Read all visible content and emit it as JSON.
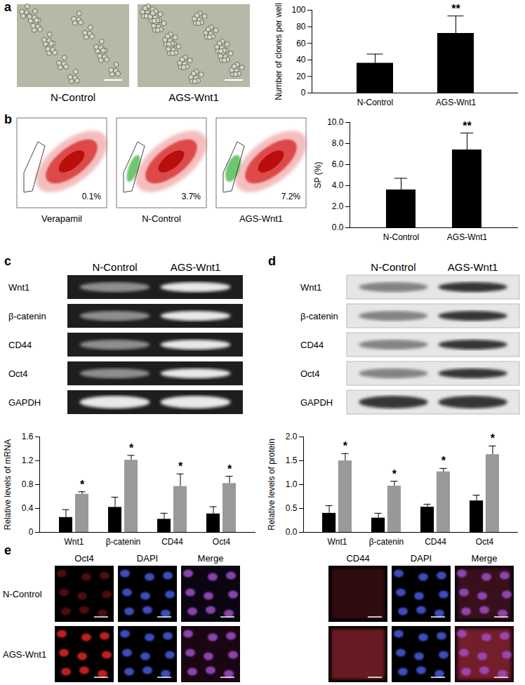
{
  "panels": {
    "labels": [
      "a",
      "b",
      "c",
      "d",
      "e"
    ],
    "a": {
      "images": [
        "N-Control",
        "AGS-Wnt1"
      ]
    },
    "b": {
      "plots": [
        {
          "label": "Verapamil",
          "gate_percent": 0.1,
          "value_label": "0.1%"
        },
        {
          "label": "N-Control",
          "gate_percent": 3.7,
          "value_label": "3.7%"
        },
        {
          "label": "AGS-Wnt1",
          "gate_percent": 7.2,
          "value_label": "7.2%"
        }
      ]
    },
    "c": {
      "columns": [
        "N-Control",
        "AGS-Wnt1"
      ],
      "rows": [
        "Wnt1",
        "β-catenin",
        "CD44",
        "Oct4",
        "GAPDH"
      ]
    },
    "d": {
      "columns": [
        "N-Control",
        "AGS-Wnt1"
      ],
      "rows": [
        "Wnt1",
        "β-catenin",
        "CD44",
        "Oct4",
        "GAPDH"
      ]
    },
    "e": {
      "rows": [
        "N-Control",
        "AGS-Wnt1"
      ],
      "groups": [
        [
          "Oct4",
          "DAPI",
          "Merge"
        ],
        [
          "CD44",
          "DAPI",
          "Merge"
        ]
      ]
    }
  },
  "chart_data": [
    {
      "type": "bar",
      "categories": [
        "N-Control",
        "AGS-Wnt1"
      ],
      "values": [
        36,
        72
      ],
      "errors": [
        11,
        21
      ],
      "color": "#000000",
      "y_label": "Number of clones per well",
      "ylim": [
        0,
        100
      ],
      "yticks": [
        0,
        20,
        40,
        60,
        80,
        100
      ],
      "annotations": [
        {
          "category": "AGS-Wnt1",
          "series": 0,
          "text": "**"
        }
      ]
    },
    {
      "type": "bar",
      "categories": [
        "N-Control",
        "AGS-Wnt1"
      ],
      "values": [
        3.6,
        7.4
      ],
      "errors": [
        1.1,
        1.6
      ],
      "color": "#000000",
      "y_label": "SP (%)",
      "ylim": [
        0,
        10
      ],
      "yticks": [
        {
          "value": 0,
          "label": "0.0"
        },
        {
          "value": 2,
          "label": "2.0"
        },
        {
          "value": 4,
          "label": "4.0"
        },
        {
          "value": 6,
          "label": "6.0"
        },
        {
          "value": 8,
          "label": "8.0"
        },
        {
          "value": 10,
          "label": "10.0"
        }
      ],
      "annotations": [
        {
          "category": "AGS-Wnt1",
          "series": 0,
          "text": "**"
        }
      ]
    },
    {
      "type": "bar",
      "categories": [
        "Wnt1",
        "β-catenin",
        "CD44",
        "Oct4"
      ],
      "series": [
        {
          "color": "#000000",
          "values": [
            0.25,
            0.42,
            0.22,
            0.31
          ],
          "errors": [
            0.13,
            0.17,
            0.1,
            0.12
          ]
        },
        {
          "color": "#999999",
          "values": [
            0.64,
            1.21,
            0.77,
            0.82
          ],
          "errors": [
            0.04,
            0.08,
            0.21,
            0.12
          ]
        }
      ],
      "y_label": "Relative levels of mRNA",
      "ylim": [
        0,
        1.6
      ],
      "yticks": [
        0,
        0.4,
        0.8,
        1.2,
        1.6
      ],
      "annotations": [
        {
          "category": "Wnt1",
          "series": 1,
          "text": "*"
        },
        {
          "category": "β-catenin",
          "series": 1,
          "text": "*"
        },
        {
          "category": "CD44",
          "series": 1,
          "text": "*"
        },
        {
          "category": "Oct4",
          "series": 1,
          "text": "*"
        }
      ]
    },
    {
      "type": "bar",
      "categories": [
        "Wnt1",
        "β-catenin",
        "CD44",
        "Oct4"
      ],
      "series": [
        {
          "color": "#000000",
          "values": [
            0.4,
            0.3,
            0.53,
            0.66
          ],
          "errors": [
            0.16,
            0.1,
            0.06,
            0.12
          ]
        },
        {
          "color": "#999999",
          "values": [
            1.5,
            0.97,
            1.27,
            1.63
          ],
          "errors": [
            0.15,
            0.1,
            0.07,
            0.18
          ]
        }
      ],
      "y_label": "Relative levels of protein",
      "ylim": [
        0,
        2
      ],
      "yticks": [
        {
          "value": 0,
          "label": "0.0"
        },
        {
          "value": 0.5,
          "label": "0.5"
        },
        {
          "value": 1,
          "label": "1.0"
        },
        {
          "value": 1.5,
          "label": "1.5"
        },
        {
          "value": 2,
          "label": "2.0"
        }
      ],
      "annotations": [
        {
          "category": "Wnt1",
          "series": 1,
          "text": "*"
        },
        {
          "category": "β-catenin",
          "series": 1,
          "text": "*"
        },
        {
          "category": "CD44",
          "series": 1,
          "text": "*"
        },
        {
          "category": "Oct4",
          "series": 1,
          "text": "*"
        }
      ]
    }
  ]
}
